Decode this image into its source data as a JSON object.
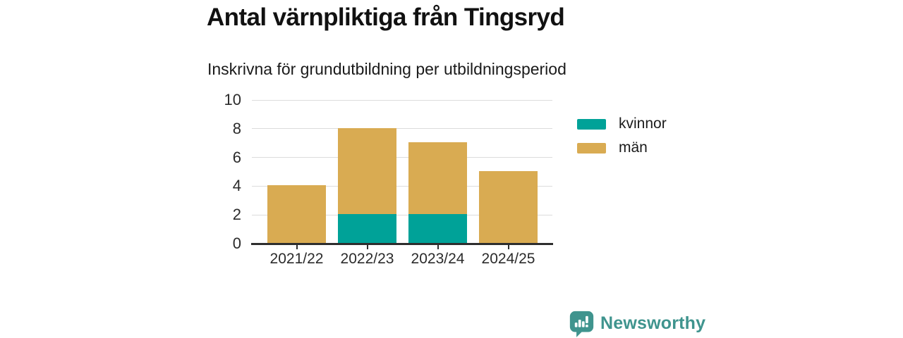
{
  "chart_data": {
    "type": "bar",
    "stacked": true,
    "title": "Antal värnpliktiga från Tingsryd",
    "subtitle": "Inskrivna för grundutbildning per utbildningsperiod",
    "categories": [
      "2021/22",
      "2022/23",
      "2023/24",
      "2024/25"
    ],
    "series": [
      {
        "name": "kvinnor",
        "color": "#00a298",
        "values": [
          0,
          2,
          2,
          0
        ]
      },
      {
        "name": "män",
        "color": "#d9ab52",
        "values": [
          4,
          6,
          5,
          5
        ]
      }
    ],
    "totals": [
      4,
      8,
      7,
      5
    ],
    "ylim": [
      0,
      10
    ],
    "yticks": [
      0,
      2,
      4,
      6,
      8,
      10
    ],
    "xlabel": "",
    "ylabel": "",
    "grid": true,
    "legend_position": "right",
    "legend_order": [
      "kvinnor",
      "män"
    ]
  },
  "branding": {
    "logo_text": "Newsworthy",
    "logo_color": "#3f948e"
  },
  "style": {
    "background": "#ffffff",
    "gridline_color": "#dcdcdc",
    "axis_color": "#2e2e2e",
    "text_color": "#1a1a1a"
  }
}
